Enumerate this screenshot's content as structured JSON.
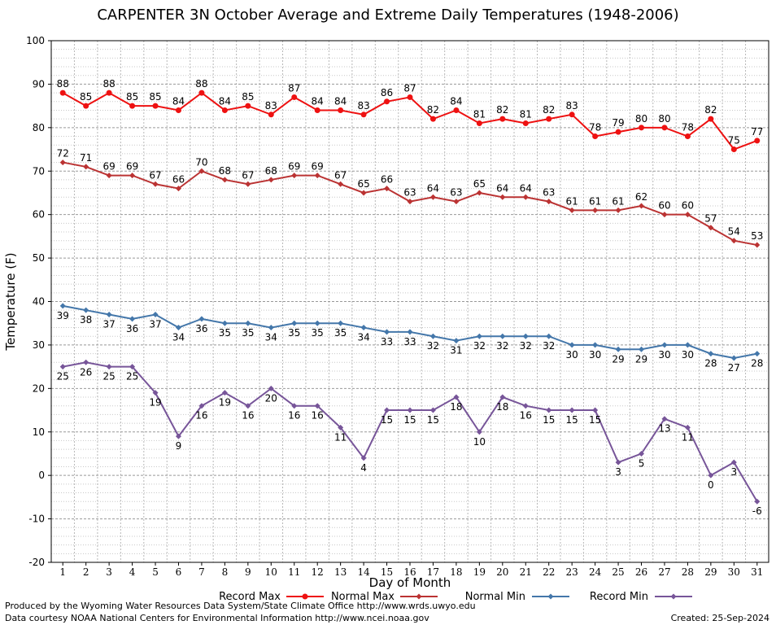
{
  "chart_data": {
    "type": "line",
    "title": "CARPENTER 3N October Average and Extreme Daily Temperatures (1948-2006)",
    "xlabel": "Day of Month",
    "ylabel": "Temperature (F)",
    "xlim": [
      1,
      31
    ],
    "ylim": [
      -20,
      100
    ],
    "yticks": [
      -20,
      -10,
      0,
      10,
      20,
      30,
      40,
      50,
      60,
      70,
      80,
      90,
      100
    ],
    "x": [
      1,
      2,
      3,
      4,
      5,
      6,
      7,
      8,
      9,
      10,
      11,
      12,
      13,
      14,
      15,
      16,
      17,
      18,
      19,
      20,
      21,
      22,
      23,
      24,
      25,
      26,
      27,
      28,
      29,
      30,
      31
    ],
    "grid": true,
    "legend_position": "bottom",
    "series": [
      {
        "name": "Record Max",
        "color": "#ee1111",
        "label_pos": "above",
        "values": [
          88,
          85,
          88,
          85,
          85,
          84,
          88,
          84,
          85,
          83,
          87,
          84,
          84,
          83,
          86,
          87,
          82,
          84,
          81,
          82,
          81,
          82,
          83,
          78,
          79,
          80,
          80,
          78,
          82,
          75,
          77
        ]
      },
      {
        "name": "Normal Max",
        "color": "#bb3333",
        "label_pos": "above",
        "values": [
          72,
          71,
          69,
          69,
          67,
          66,
          70,
          68,
          67,
          68,
          69,
          69,
          67,
          65,
          66,
          63,
          64,
          63,
          65,
          64,
          64,
          63,
          61,
          61,
          61,
          62,
          60,
          60,
          57,
          54,
          53
        ]
      },
      {
        "name": "Normal Min",
        "color": "#4477aa",
        "label_pos": "below",
        "values": [
          39,
          38,
          37,
          36,
          37,
          34,
          36,
          35,
          35,
          34,
          35,
          35,
          35,
          34,
          33,
          33,
          32,
          31,
          32,
          32,
          32,
          32,
          30,
          30,
          29,
          29,
          30,
          30,
          28,
          27,
          28
        ]
      },
      {
        "name": "Record Min",
        "color": "#775599",
        "label_pos": "below",
        "values": [
          25,
          26,
          25,
          25,
          19,
          9,
          16,
          19,
          16,
          20,
          16,
          16,
          11,
          4,
          15,
          15,
          15,
          18,
          10,
          18,
          16,
          15,
          15,
          15,
          3,
          5,
          13,
          11,
          0,
          3,
          -6
        ]
      }
    ]
  },
  "footer": {
    "left_line1": "Produced by the Wyoming Water Resources Data System/State Climate Office http://www.wrds.uwyo.edu",
    "left_line2": "Data courtesy NOAA National Centers for Environmental Information http://www.ncei.noaa.gov",
    "created": "Created:  25-Sep-2024"
  }
}
